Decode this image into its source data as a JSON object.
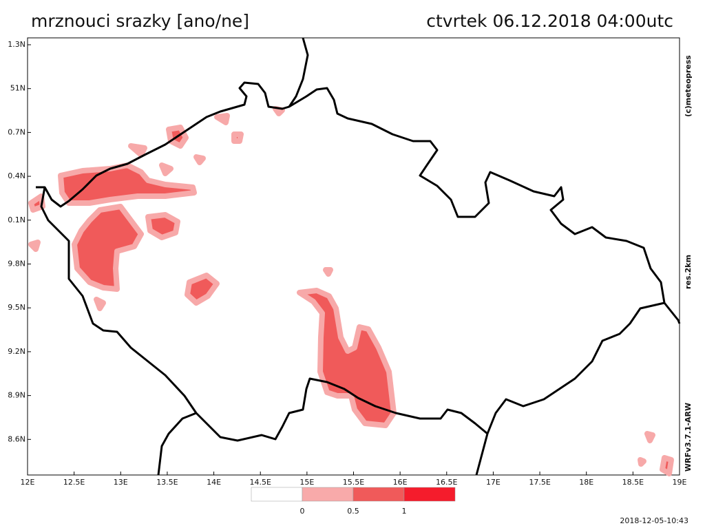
{
  "header": {
    "title": "mrznouci srazky [ano/ne]",
    "valid_time": "ctvrtek 06.12.2018 04:00utc"
  },
  "map": {
    "lon_labels": [
      "12E",
      "12.5E",
      "13E",
      "13.5E",
      "14E",
      "14.5E",
      "15E",
      "15.5E",
      "16E",
      "16.5E",
      "17E",
      "17.5E",
      "18E",
      "18.5E",
      "19E"
    ],
    "lat_labels": [
      "1.3N",
      "51N",
      "0.7N",
      "0.4N",
      "0.1N",
      "9.8N",
      "9.5N",
      "9.2N",
      "8.9N",
      "8.6N"
    ]
  },
  "legend": {
    "labels": [
      "0",
      "0.5",
      "1"
    ],
    "colors": [
      "#ffffff",
      "#f8aaaa",
      "#f05a5a",
      "#f51c2c"
    ]
  },
  "side_labels": [
    "(c)meteopress",
    "res.2km",
    "WRFv3.7.1-ARW"
  ],
  "footer": "2018-12-05-10:43"
}
